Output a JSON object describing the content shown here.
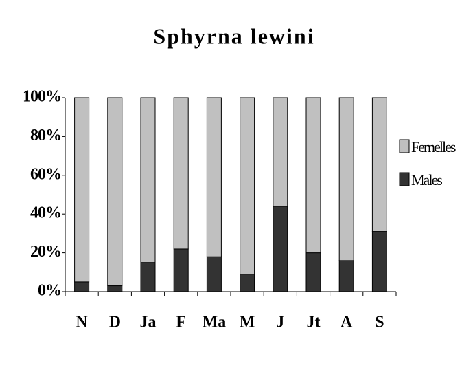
{
  "chart_data": {
    "type": "bar",
    "stacked": true,
    "title": "Sphyrna lewini",
    "categories": [
      "N",
      "D",
      "Ja",
      "F",
      "Ma",
      "M",
      "J",
      "Jt",
      "A",
      "S"
    ],
    "series": [
      {
        "name": "Femelles",
        "color": "#c0c0c0",
        "values": [
          95,
          97,
          85,
          78,
          82,
          91,
          56,
          80,
          84,
          69
        ]
      },
      {
        "name": "Males",
        "color": "#333333",
        "values": [
          5,
          3,
          15,
          22,
          18,
          9,
          44,
          20,
          16,
          31
        ]
      }
    ],
    "ylim": [
      0,
      100
    ],
    "yticks": [
      {
        "value": 0,
        "label": "0%"
      },
      {
        "value": 20,
        "label": "20%"
      },
      {
        "value": 40,
        "label": "40%"
      },
      {
        "value": 60,
        "label": "60%"
      },
      {
        "value": 80,
        "label": "80%"
      },
      {
        "value": 100,
        "label": "100%"
      }
    ],
    "grid": false,
    "legend": "right"
  }
}
